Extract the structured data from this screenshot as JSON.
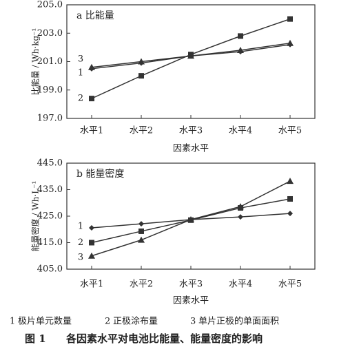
{
  "chart_data": [
    {
      "type": "line",
      "title": "a  比能量",
      "ylabel": "比能量 / Wh·kg⁻¹",
      "xlabel": "因素水平",
      "categories": [
        "水平1",
        "水平2",
        "水平3",
        "水平4",
        "水平5"
      ],
      "ylim": [
        197,
        205
      ],
      "yticks": [
        {
          "value": 197,
          "label": "197.0"
        },
        {
          "value": 199,
          "label": "199.0"
        },
        {
          "value": 201,
          "label": "201.0"
        },
        {
          "value": 203,
          "label": "203.0"
        },
        {
          "value": 205,
          "label": "205.0"
        }
      ],
      "series": [
        {
          "name": "1",
          "color": "#333333",
          "marker": "diamond",
          "values": [
            200.5,
            200.9,
            201.4,
            201.7,
            202.2
          ]
        },
        {
          "name": "2",
          "color": "#333333",
          "marker": "square",
          "values": [
            198.4,
            200.0,
            201.5,
            202.8,
            204.0
          ]
        },
        {
          "name": "3",
          "color": "#333333",
          "marker": "triangle",
          "values": [
            200.6,
            201.0,
            201.4,
            201.8,
            202.3
          ]
        }
      ]
    },
    {
      "type": "line",
      "title": "b  能量密度",
      "ylabel": "能量密度 / Wh·L⁻¹",
      "xlabel": "因素水平",
      "categories": [
        "水平1",
        "水平2",
        "水平3",
        "水平4",
        "水平5"
      ],
      "ylim": [
        405,
        445
      ],
      "yticks": [
        {
          "value": 405,
          "label": "405.0"
        },
        {
          "value": 415,
          "label": "415.0"
        },
        {
          "value": 425,
          "label": "425.0"
        },
        {
          "value": 435,
          "label": "435.0"
        },
        {
          "value": 445,
          "label": "445.0"
        }
      ],
      "series": [
        {
          "name": "1",
          "color": "#333333",
          "marker": "diamond",
          "values": [
            420.6,
            422.1,
            423.7,
            424.7,
            426.0
          ]
        },
        {
          "name": "2",
          "color": "#333333",
          "marker": "square",
          "values": [
            415.0,
            419.3,
            423.5,
            428.1,
            431.5
          ]
        },
        {
          "name": "3",
          "color": "#333333",
          "marker": "triangle",
          "values": [
            410.0,
            416.0,
            423.7,
            428.6,
            438.2
          ]
        }
      ]
    }
  ],
  "legend_items": [
    {
      "number": "1",
      "label": "极片单元数量"
    },
    {
      "number": "2",
      "label": "正极涂布量"
    },
    {
      "number": "3",
      "label": "单片正极的单面面积"
    }
  ],
  "figure_caption": {
    "number": "图 1",
    "text": "各因素水平对电池比能量、能量密度的影响"
  }
}
